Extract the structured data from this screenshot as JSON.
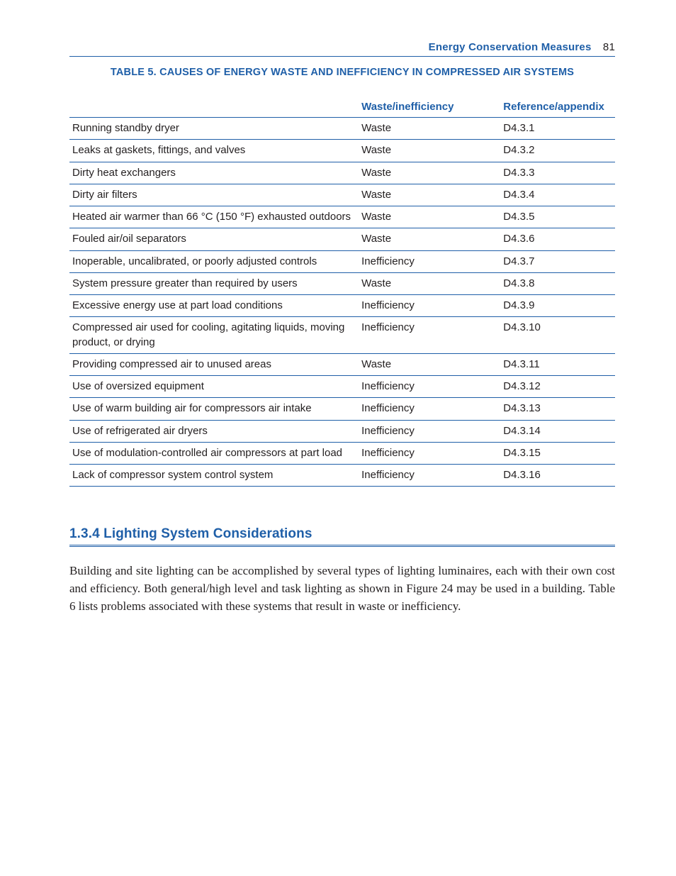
{
  "header": {
    "running_title": "Energy Conservation Measures",
    "page_number": "81"
  },
  "table5": {
    "type": "table",
    "title": "TABLE 5.  CAUSES OF ENERGY WASTE AND INEFFICIENCY IN COMPRESSED AIR SYSTEMS",
    "columns": [
      "",
      "Waste/inefficiency",
      "Reference/appendix"
    ],
    "column_widths_pct": [
      53,
      26,
      21
    ],
    "header_color": "#1f5fa8",
    "border_color": "#1f5fa8",
    "text_color": "#231f20",
    "fontsize": 15,
    "header_fontsize": 15,
    "title_fontsize": 14.5,
    "rows": [
      [
        "Running standby dryer",
        "Waste",
        "D4.3.1"
      ],
      [
        "Leaks at gaskets, fittings, and valves",
        "Waste",
        "D4.3.2"
      ],
      [
        "Dirty heat exchangers",
        "Waste",
        "D4.3.3"
      ],
      [
        "Dirty air filters",
        "Waste",
        "D4.3.4"
      ],
      [
        "Heated air warmer than 66 °C (150 °F) exhausted outdoors",
        "Waste",
        "D4.3.5"
      ],
      [
        "Fouled air/oil separators",
        "Waste",
        "D4.3.6"
      ],
      [
        "Inoperable, uncalibrated, or poorly adjusted controls",
        "Inefficiency",
        "D4.3.7"
      ],
      [
        "System pressure greater than required by users",
        "Waste",
        "D4.3.8"
      ],
      [
        "Excessive energy use at part load conditions",
        "Inefficiency",
        "D4.3.9"
      ],
      [
        "Compressed air used for cooling, agitating liquids, moving product, or drying",
        "Inefficiency",
        "D4.3.10"
      ],
      [
        "Providing compressed air to unused areas",
        "Waste",
        "D4.3.11"
      ],
      [
        "Use of oversized equipment",
        "Inefficiency",
        "D4.3.12"
      ],
      [
        "Use of warm building air for compressors air intake",
        "Inefficiency",
        "D4.3.13"
      ],
      [
        "Use of refrigerated air dryers",
        "Inefficiency",
        "D4.3.14"
      ],
      [
        "Use of modulation-controlled air compressors at part load",
        "Inefficiency",
        "D4.3.15"
      ],
      [
        "Lack of compressor system control system",
        "Inefficiency",
        "D4.3.16"
      ]
    ]
  },
  "section": {
    "heading": "1.3.4 Lighting System Considerations",
    "heading_color": "#1f5fa8",
    "heading_fontsize": 19,
    "body": "Building and site lighting can be accomplished by several types of lighting luminaires, each with their own cost and efficiency. Both general/high level and task lighting as shown in Figure 24 may be used in a building. Table 6 lists problems associated with these systems that result in waste or inefficiency.",
    "body_font": "Georgia",
    "body_fontsize": 17
  },
  "colors": {
    "accent_blue": "#1f5fa8",
    "text_black": "#231f20",
    "background": "#ffffff"
  }
}
